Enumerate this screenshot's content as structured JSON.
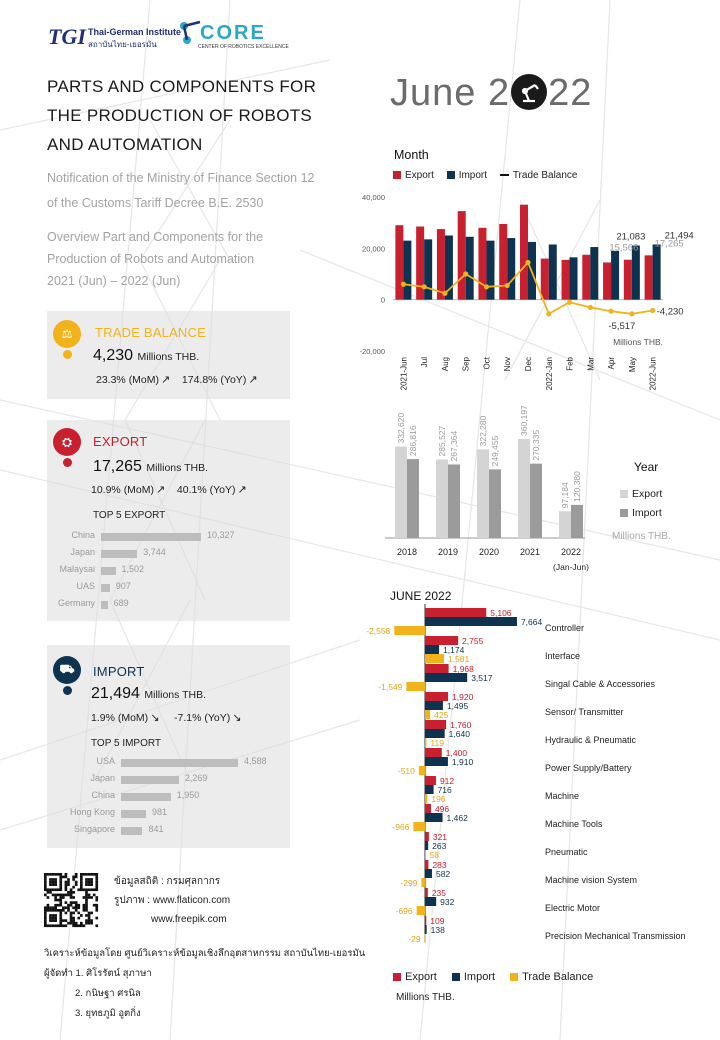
{
  "header": {
    "logo_tgi_mark": "TGI",
    "logo_tgi_name": "Thai-German Institute",
    "logo_tgi_sub": "สถาบันไทย-เยอรมัน",
    "logo_core_word": "CORE",
    "logo_core_sub": "CENTER OF ROBOTICS EXCELLENCE"
  },
  "title_lines": [
    "PARTS AND COMPONENTS FOR",
    "THE PRODUCTION OF ROBOTS",
    "AND AUTOMATION"
  ],
  "subtitle_lines": [
    "Notification of the Ministry of Finance Section 12",
    "of the Customs Tariff Decree B.E. 2530"
  ],
  "overview_lines": [
    "Overview Part and Components for the",
    "Production of Robots and Automation",
    "2021 (Jun) – 2022 (Jun)"
  ],
  "big_date": {
    "left": "June 2",
    "right": "22"
  },
  "colors": {
    "export": "#c8202e",
    "import": "#0d3350",
    "trade_balance": "#f2b21c",
    "year_export": "#d4d4d4",
    "year_import": "#9b9b9b"
  },
  "cards": {
    "trade": {
      "icon": "trade-balance-icon",
      "title": "TRADE BALANCE",
      "value": "4,230",
      "unit": "Millions THB.",
      "mom": "23.3% (MoM)",
      "yoy": "174.8% (YoY)"
    },
    "export": {
      "icon": "export-icon",
      "title": "EXPORT",
      "value": "17,265",
      "unit": "Millions THB.",
      "mom": "10.9% (MoM)",
      "yoy": "40.1% (YoY)",
      "top5_title": "TOP 5 EXPORT",
      "top5": [
        {
          "country": "China",
          "value": 10327,
          "label": "10,327"
        },
        {
          "country": "Japan",
          "value": 3744,
          "label": "3,744"
        },
        {
          "country": "Malaysai",
          "value": 1502,
          "label": "1,502"
        },
        {
          "country": "UAS",
          "value": 907,
          "label": "907"
        },
        {
          "country": "Germany",
          "value": 689,
          "label": "689"
        }
      ]
    },
    "import": {
      "icon": "import-icon",
      "title": "IMPORT",
      "value": "21,494",
      "unit": "Millions THB.",
      "mom": "1.9% (MoM)",
      "yoy": "-7.1% (YoY)",
      "top5_title": "TOP 5 IMPORT",
      "top5": [
        {
          "country": "USA",
          "value": 4588,
          "label": "4,588"
        },
        {
          "country": "Japan",
          "value": 2269,
          "label": "2,269"
        },
        {
          "country": "China",
          "value": 1950,
          "label": "1,950"
        },
        {
          "country": "Hong Kong",
          "value": 981,
          "label": "981"
        },
        {
          "country": "Singapore",
          "value": 841,
          "label": "841"
        }
      ]
    }
  },
  "credits": {
    "line1": "ข้อมูลสถิติ : กรมศุลกากร",
    "line2": "รูปภาพ : www.flaticon.com",
    "line3": "www.freepik.com"
  },
  "footer": {
    "line1": "วิเคราะห์ข้อมูลโดย ศูนย์วิเคราะห์ข้อมูลเชิงลึกอุตสาหกรรม สถาบันไทย-เยอรมัน",
    "line2": "ผู้จัดทำ  1. ศิโรรัตน์ สุภาษา",
    "line3": "2. กนิษฐา ศรนิล",
    "line4": "3. ยุทธภูมิ อูตกิ่ง"
  },
  "chart_data": [
    {
      "type": "bar",
      "title": "Month",
      "legend": [
        "Export",
        "Import",
        "Trade Balance"
      ],
      "unit": "Millions THB.",
      "categories": [
        "2021-Jun",
        "Jul",
        "Aug",
        "Sep",
        "Oct",
        "Nov",
        "Dec",
        "2022-Jan",
        "Feb",
        "Mar",
        "Apr",
        "May",
        "2022-Jun"
      ],
      "ylim": [
        -20000,
        40000
      ],
      "yticks": [
        -20000,
        0,
        20000,
        40000
      ],
      "ytick_labels": [
        "-20,000",
        "0",
        "20,000",
        "40,000"
      ],
      "series": [
        {
          "name": "Export",
          "values": [
            29000,
            28500,
            27500,
            34500,
            28000,
            29500,
            37000,
            16000,
            15500,
            17500,
            14500,
            15566,
            17265
          ]
        },
        {
          "name": "Import",
          "values": [
            23000,
            23500,
            25000,
            24500,
            23000,
            24000,
            22500,
            21500,
            16500,
            20500,
            19000,
            21083,
            21494
          ]
        },
        {
          "name": "Trade Balance",
          "values": [
            6000,
            5000,
            2500,
            10000,
            5000,
            5500,
            14500,
            -5500,
            -1000,
            -3000,
            -4500,
            -5517,
            -4230
          ]
        }
      ],
      "data_labels": [
        {
          "series": "Import",
          "index": 11,
          "label": "21,083"
        },
        {
          "series": "Import",
          "index": 12,
          "label": "21,494"
        },
        {
          "series": "Export",
          "index": 11,
          "label": "15,566"
        },
        {
          "series": "Export",
          "index": 12,
          "label": "17,265"
        },
        {
          "series": "Trade Balance",
          "index": 11,
          "label": "-5,517"
        },
        {
          "series": "Trade Balance",
          "index": 12,
          "label": "-4,230"
        }
      ]
    },
    {
      "type": "bar",
      "title": "Year",
      "legend": [
        "Export",
        "Import"
      ],
      "unit": "Millions THB.",
      "categories": [
        "2018",
        "2019",
        "2020",
        "2021",
        "2022"
      ],
      "category_sublabels": [
        "",
        "",
        "",
        "",
        "(Jan-Jun)"
      ],
      "series": [
        {
          "name": "Export",
          "values": [
            332620,
            285527,
            322280,
            360197,
            97184
          ],
          "labels": [
            "332,620",
            "285,527",
            "322,280",
            "360,197",
            "97,184"
          ]
        },
        {
          "name": "Import",
          "values": [
            286816,
            267364,
            249455,
            270335,
            120380
          ],
          "labels": [
            "286,816",
            "267,364",
            "249,455",
            "270,335",
            "120,380"
          ]
        }
      ]
    },
    {
      "type": "bar",
      "orientation": "horizontal",
      "title": "JUNE 2022",
      "legend": [
        "Export",
        "Import",
        "Trade Balance"
      ],
      "unit": "Millions THB.",
      "categories": [
        "Controller",
        "Interface",
        "Singal Cable & Accessories",
        "Sensor/ Transmitter",
        "Hydraulic & Pneumatic",
        "Power Supply/Battery",
        "Machine",
        "Machine Tools",
        "Pneumatic",
        "Machine vision System",
        "Electric Motor",
        "Precision Mechanical Transmission"
      ],
      "series": [
        {
          "name": "Export",
          "values": [
            5106,
            2755,
            1968,
            1920,
            1760,
            1400,
            912,
            496,
            321,
            283,
            235,
            109
          ],
          "labels": [
            "5,106",
            "2,755",
            "1,968",
            "1,920",
            "1,760",
            "1,400",
            "912",
            "496",
            "321",
            "283",
            "235",
            "109"
          ]
        },
        {
          "name": "Import",
          "values": [
            7664,
            1174,
            3517,
            1495,
            1640,
            1910,
            716,
            1462,
            263,
            582,
            932,
            138
          ],
          "labels": [
            "7,664",
            "1,174",
            "3,517",
            "1,495",
            "1,640",
            "1,910",
            "716",
            "1,462",
            "263",
            "582",
            "932",
            "138"
          ]
        },
        {
          "name": "Trade Balance",
          "values": [
            -2558,
            1581,
            -1549,
            425,
            119,
            -510,
            196,
            -966,
            58,
            -299,
            -696,
            -29
          ],
          "labels": [
            "-2,558",
            "1,581",
            "-1,549",
            "425",
            "119",
            "-510",
            "196",
            "-966",
            "58",
            "-299",
            "-696",
            "-29"
          ]
        }
      ]
    }
  ]
}
